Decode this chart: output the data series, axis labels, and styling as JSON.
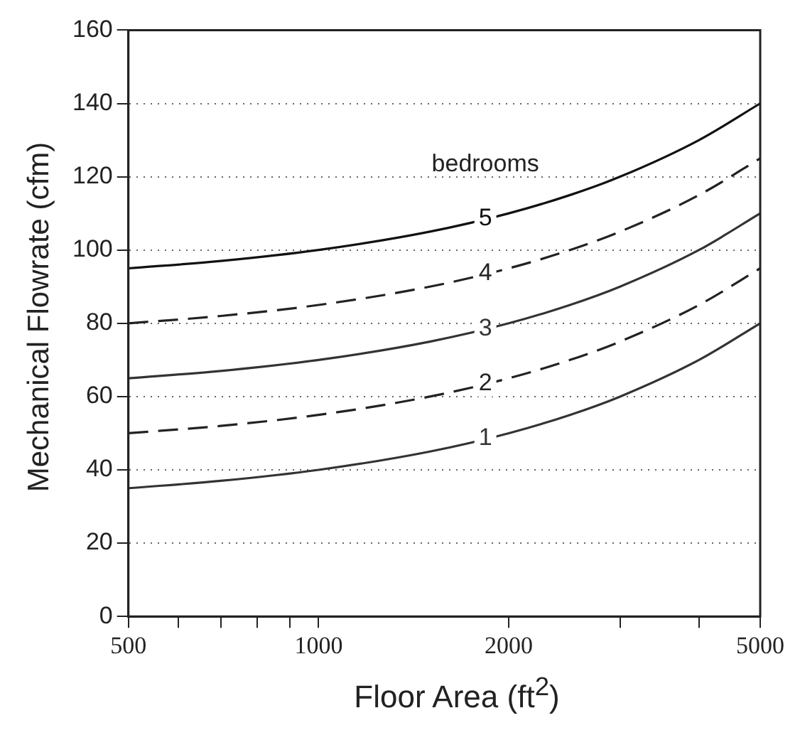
{
  "chart_data": {
    "type": "line",
    "xlabel": "Floor Area (ft$^{2}$)",
    "ylabel": "Mechanical Flowrate (cfm)",
    "log": "x",
    "grid": "y",
    "legend": false,
    "marker": "none",
    "x": [
      500,
      700,
      1000,
      1500,
      2000,
      2500,
      3000,
      4000,
      5000
    ],
    "xlim": [
      500,
      5000
    ],
    "xticks": [
      500,
      {
        "value": 600,
        "label": null
      },
      {
        "value": 700,
        "label": null
      },
      {
        "value": 800,
        "label": null
      },
      {
        "value": 900,
        "label": null
      },
      1000,
      2000,
      {
        "value": 3000,
        "label": null
      },
      {
        "value": 4000,
        "label": null
      },
      5000
    ],
    "ylim": [
      0,
      160
    ],
    "yticks": [
      0,
      20,
      40,
      60,
      80,
      100,
      120,
      140,
      160
    ],
    "annotations": [
      "bedrooms"
    ],
    "series": [
      {
        "name": "1",
        "color": "#333333",
        "line_style": "solid",
        "values": [
          35,
          37,
          40,
          45,
          50,
          55,
          60,
          70,
          80
        ]
      },
      {
        "name": "2",
        "color": "#222222",
        "line_style": "dashed",
        "values": [
          50,
          52,
          55,
          60,
          65,
          70,
          75,
          85,
          95
        ]
      },
      {
        "name": "3",
        "color": "#333333",
        "line_style": "solid",
        "values": [
          65,
          67,
          70,
          75,
          80,
          85,
          90,
          100,
          110
        ]
      },
      {
        "name": "4",
        "color": "#222222",
        "line_style": "dashed",
        "values": [
          80,
          82,
          85,
          90,
          95,
          100,
          105,
          115,
          125
        ]
      },
      {
        "name": "5",
        "color": "#111111",
        "line_style": "solid",
        "values": [
          95,
          97,
          100,
          105,
          110,
          115,
          120,
          130,
          140
        ]
      }
    ]
  }
}
